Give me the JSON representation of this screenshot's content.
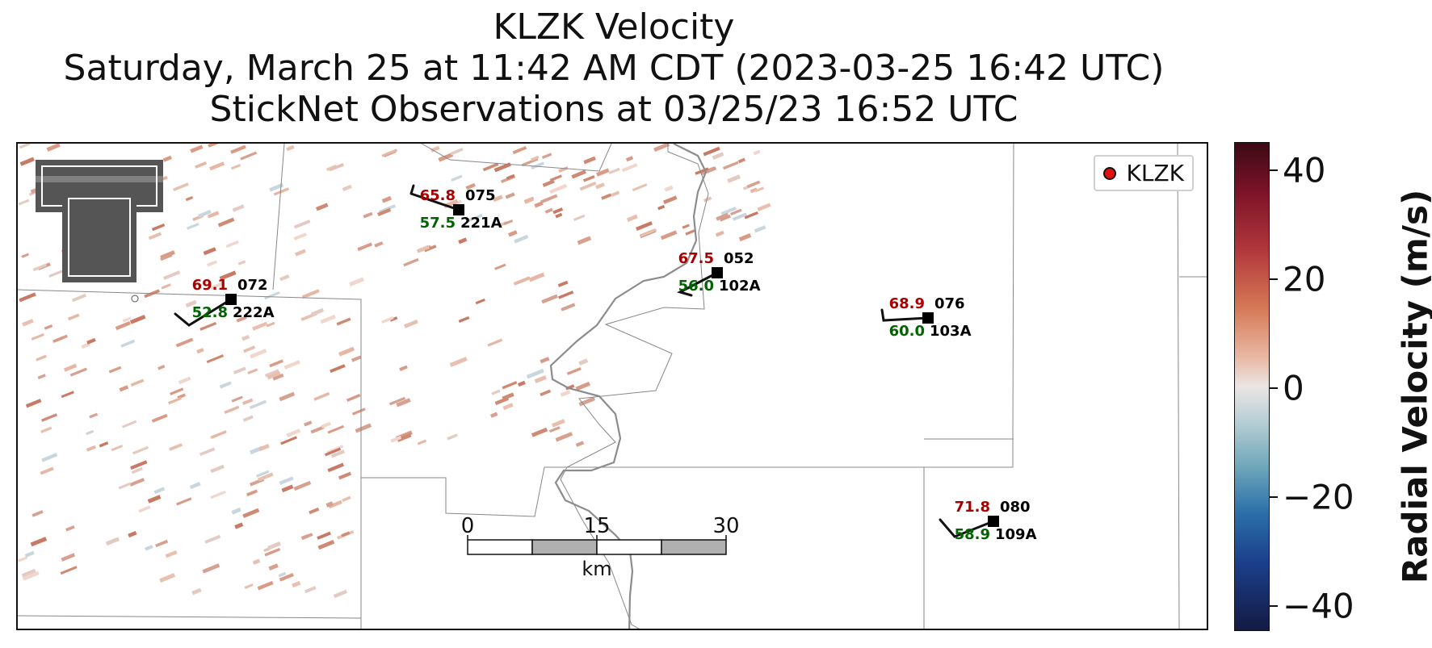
{
  "title": {
    "line1": "KLZK Velocity",
    "line2": "Saturday, March 25 at 11:42 AM CDT (2023-03-25 16:42 UTC)",
    "line3": "StickNet Observations at 03/25/23 16:52 UTC"
  },
  "legend": {
    "label": "KLZK",
    "marker_color": "#e01010"
  },
  "stations": [
    {
      "id": "075",
      "probe": "221A",
      "red_value": "65.8",
      "green_value": "57.5"
    },
    {
      "id": "072",
      "probe": "222A",
      "red_value": "69.1",
      "green_value": "52.8"
    },
    {
      "id": "052",
      "probe": "102A",
      "red_value": "67.5",
      "green_value": "56.0"
    },
    {
      "id": "076",
      "probe": "103A",
      "red_value": "68.9",
      "green_value": "60.0"
    },
    {
      "id": "080",
      "probe": "109A",
      "red_value": "71.8",
      "green_value": "58.9"
    }
  ],
  "scale_bar": {
    "ticks": [
      "0",
      "15",
      "30"
    ],
    "unit": "km"
  },
  "colorbar": {
    "title": "Radial Velocity (m/s)",
    "ticks": [
      "40",
      "20",
      "0",
      "−20",
      "−40"
    ],
    "colors": {
      "max": "#3b0a14",
      "mid": "#eae6e4",
      "min": "#141a42"
    }
  },
  "logo": {
    "name": "Texas Tech Double T"
  },
  "colors": {
    "temperature": "#aa0000",
    "dewpoint": "#006400",
    "county_line": "#888888",
    "river": "#8c8c8c"
  }
}
